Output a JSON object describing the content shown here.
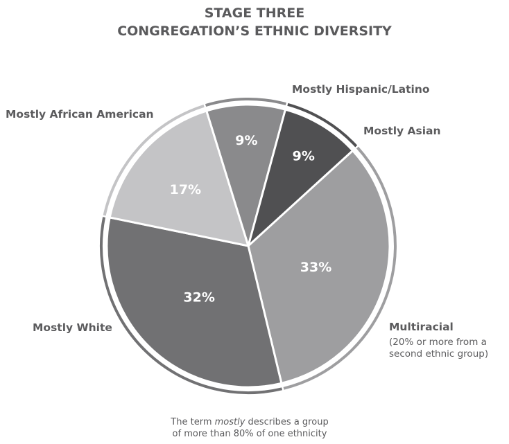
{
  "chart_data": {
    "type": "pie",
    "title_lines": [
      "STAGE THREE",
      "CONGREGATION’S ETHNIC DIVERSITY"
    ],
    "slices": [
      {
        "label": "Mostly Hispanic/Latino",
        "sublabel": "",
        "value": 9,
        "value_label": "9%",
        "color": "#8a8a8c"
      },
      {
        "label": "Mostly Asian",
        "sublabel": "",
        "value": 9,
        "value_label": "9%",
        "color": "#505052"
      },
      {
        "label": "Multiracial",
        "sublabel": "(20% or more from a second ethnic group)",
        "value": 33,
        "value_label": "33%",
        "color": "#9e9ea0"
      },
      {
        "label": "Mostly White",
        "sublabel": "",
        "value": 32,
        "value_label": "32%",
        "color": "#717173"
      },
      {
        "label": "Mostly African American",
        "sublabel": "",
        "value": 17,
        "value_label": "17%",
        "color": "#c4c4c6"
      }
    ],
    "footnote": {
      "line1_before": "The term ",
      "line1_em": "mostly",
      "line1_after": " describes a group",
      "line2": "of more than 80% of one ethnicity"
    }
  }
}
